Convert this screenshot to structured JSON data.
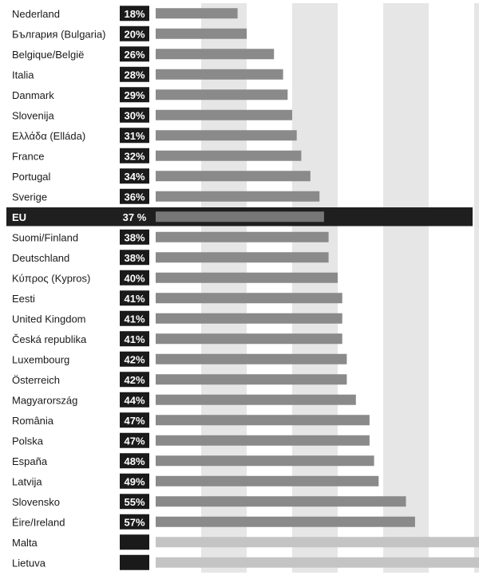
{
  "chart_data": {
    "type": "bar",
    "orientation": "horizontal",
    "unit": "%",
    "xlim": [
      0,
      100
    ],
    "highlight": "EU",
    "colors": {
      "bar": "#8a8a8a",
      "bar_highlight": "#777777",
      "bar_no_data": "#c4c4c4",
      "label_box": "#1a1a1a",
      "highlight_row": "#1f1f1f",
      "band": "#e6e6e6"
    },
    "rows": [
      {
        "label": "Nederland",
        "value": 18,
        "text": "18%"
      },
      {
        "label": "България (Bulgaria)",
        "value": 20,
        "text": "20%"
      },
      {
        "label": "Belgique/België",
        "value": 26,
        "text": "26%"
      },
      {
        "label": "Italia",
        "value": 28,
        "text": "28%"
      },
      {
        "label": "Danmark",
        "value": 29,
        "text": "29%"
      },
      {
        "label": "Slovenija",
        "value": 30,
        "text": "30%"
      },
      {
        "label": "Ελλάδα (Elláda)",
        "value": 31,
        "text": "31%"
      },
      {
        "label": "France",
        "value": 32,
        "text": "32%"
      },
      {
        "label": "Portugal",
        "value": 34,
        "text": "34%"
      },
      {
        "label": "Sverige",
        "value": 36,
        "text": "36%"
      },
      {
        "label": "EU",
        "value": 37,
        "text": "37 %"
      },
      {
        "label": "Suomi/Finland",
        "value": 38,
        "text": "38%"
      },
      {
        "label": "Deutschland",
        "value": 38,
        "text": "38%"
      },
      {
        "label": "Κύπρος (Kypros)",
        "value": 40,
        "text": "40%"
      },
      {
        "label": "Eesti",
        "value": 41,
        "text": "41%"
      },
      {
        "label": "United Kingdom",
        "value": 41,
        "text": "41%"
      },
      {
        "label": "Česká republika",
        "value": 41,
        "text": "41%"
      },
      {
        "label": "Luxembourg",
        "value": 42,
        "text": "42%"
      },
      {
        "label": "Österreich",
        "value": 42,
        "text": "42%"
      },
      {
        "label": "Magyarország",
        "value": 44,
        "text": "44%"
      },
      {
        "label": "România",
        "value": 47,
        "text": "47%"
      },
      {
        "label": "Polska",
        "value": 47,
        "text": "47%"
      },
      {
        "label": "España",
        "value": 48,
        "text": "48%"
      },
      {
        "label": "Latvija",
        "value": 49,
        "text": "49%"
      },
      {
        "label": "Slovensko",
        "value": 55,
        "text": "55%"
      },
      {
        "label": "Éire/Ireland",
        "value": 57,
        "text": "57%"
      },
      {
        "label": "Malta",
        "value": null,
        "text": ""
      },
      {
        "label": "Lietuva",
        "value": null,
        "text": ""
      }
    ]
  }
}
